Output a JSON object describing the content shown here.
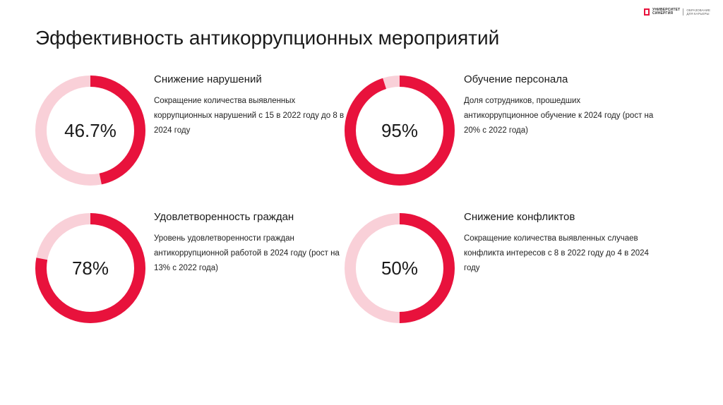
{
  "logo": {
    "main": "УНИВЕРСИТЕТ\nСИНЕРГИЯ",
    "tagline": "ОБРАЗОВАНИЕ\nДЛЯ КАРЬЕРЫ"
  },
  "page": {
    "title": "Эффективность антикоррупционных мероприятий"
  },
  "colors": {
    "accent": "#e8123c",
    "track": "#f9d0d8"
  },
  "chart_data": [
    {
      "type": "pie",
      "title": "Снижение нарушений",
      "description": "Сокращение количества выявленных коррупционных нарушений с 15 в 2022 году до 8 в 2024 году",
      "value": 46.7,
      "value_label": "46.7%",
      "max": 100
    },
    {
      "type": "pie",
      "title": "Обучение персонала",
      "description": "Доля сотрудников, прошедших антикоррупционное обучение к 2024 году (рост на 20% с 2022 года)",
      "value": 95,
      "value_label": "95%",
      "max": 100
    },
    {
      "type": "pie",
      "title": "Удовлетворенность граждан",
      "description": "Уровень удовлетворенности граждан антикоррупционной работой в 2024 году (рост на 13% с 2022 года)",
      "value": 78,
      "value_label": "78%",
      "max": 100
    },
    {
      "type": "pie",
      "title": "Снижение конфликтов",
      "description": "Сокращение количества выявленных случаев конфликта интересов с 8 в 2022 году до 4 в 2024 году",
      "value": 50,
      "value_label": "50%",
      "max": 100
    }
  ]
}
